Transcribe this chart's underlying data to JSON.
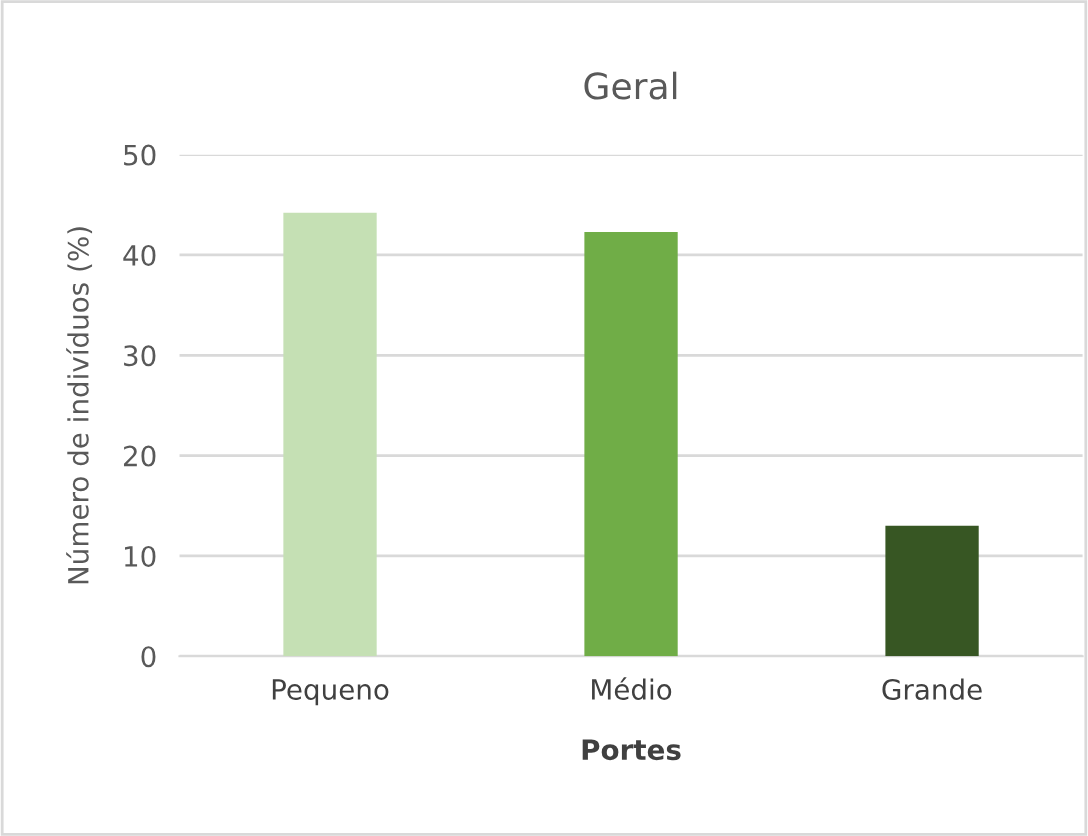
{
  "chart_data": {
    "type": "bar",
    "title": "Geral",
    "xlabel": "Portes",
    "ylabel": "Número de indivíduos (%)",
    "categories": [
      "Pequeno",
      "Médio",
      "Grande"
    ],
    "values": [
      44.2,
      42.3,
      13.0
    ],
    "colors": [
      "#c5e0b4",
      "#70ad47",
      "#375623"
    ],
    "ylim": [
      0,
      50
    ],
    "yticks": [
      0,
      10,
      20,
      30,
      40,
      50
    ],
    "grid": "y",
    "legend": false
  }
}
